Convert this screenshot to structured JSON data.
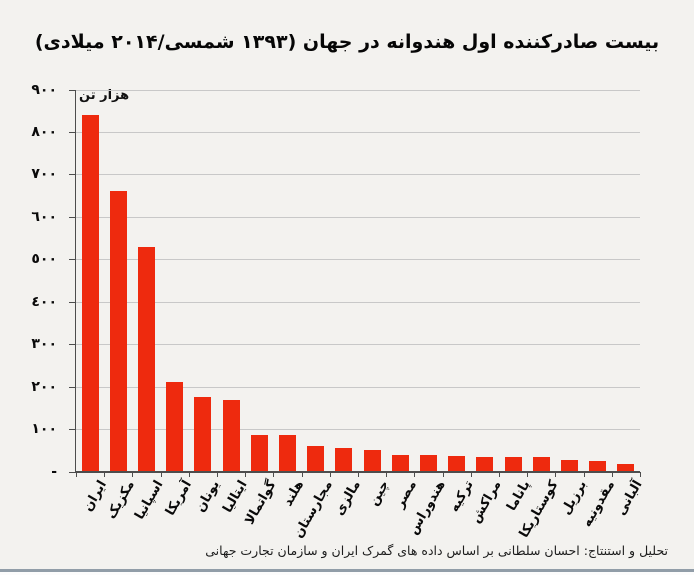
{
  "page": {
    "title": "بیست صادرکننده اول هندوانه در جهان (۱۳۹۳ شمسی/۲۰۱۴ میلادی)",
    "source_note": "تحلیل و استنتاج: احسان سلطانی بر اساس داده های گمرک ایران و سازمان تجارت جهانی"
  },
  "chart_data": {
    "type": "bar",
    "title": "بیست صادرکننده اول هندوانه در جهان (۱۳۹۳ شمسی/۲۰۱۴ میلادی)",
    "unit_label": "هزار تن",
    "categories": [
      "ایران",
      "مکزیک",
      "اسپانیا",
      "آمریکا",
      "یونان",
      "ایتالیا",
      "گواتمالا",
      "هلند",
      "مجارستان",
      "مالزی",
      "چین",
      "مصر",
      "هندوراس",
      "ترکیه",
      "مراکش",
      "پاناما",
      "کوستاریکا",
      "برزیل",
      "مقدونیه",
      "آلبانی"
    ],
    "values": [
      840,
      660,
      530,
      210,
      175,
      168,
      85,
      87,
      60,
      56,
      50,
      40,
      40,
      37,
      35,
      33,
      34,
      28,
      25,
      18
    ],
    "ylim": [
      0,
      900
    ],
    "y_tick_values": [
      0,
      100,
      200,
      300,
      400,
      500,
      600,
      700,
      800,
      900
    ],
    "y_tick_labels": [
      "-",
      "١٠٠",
      "٢٠٠",
      "٣٠٠",
      "٤٠٠",
      "٥٠٠",
      "٦٠٠",
      "٧٠٠",
      "٨٠٠",
      "٩٠٠"
    ],
    "grid": true,
    "legend": "none",
    "bar_color": "#ee2a0e",
    "source_note": "تحلیل و استنتاج: احسان سلطانی بر اساس داده های گمرک ایران و سازمان تجارت جهانی"
  }
}
